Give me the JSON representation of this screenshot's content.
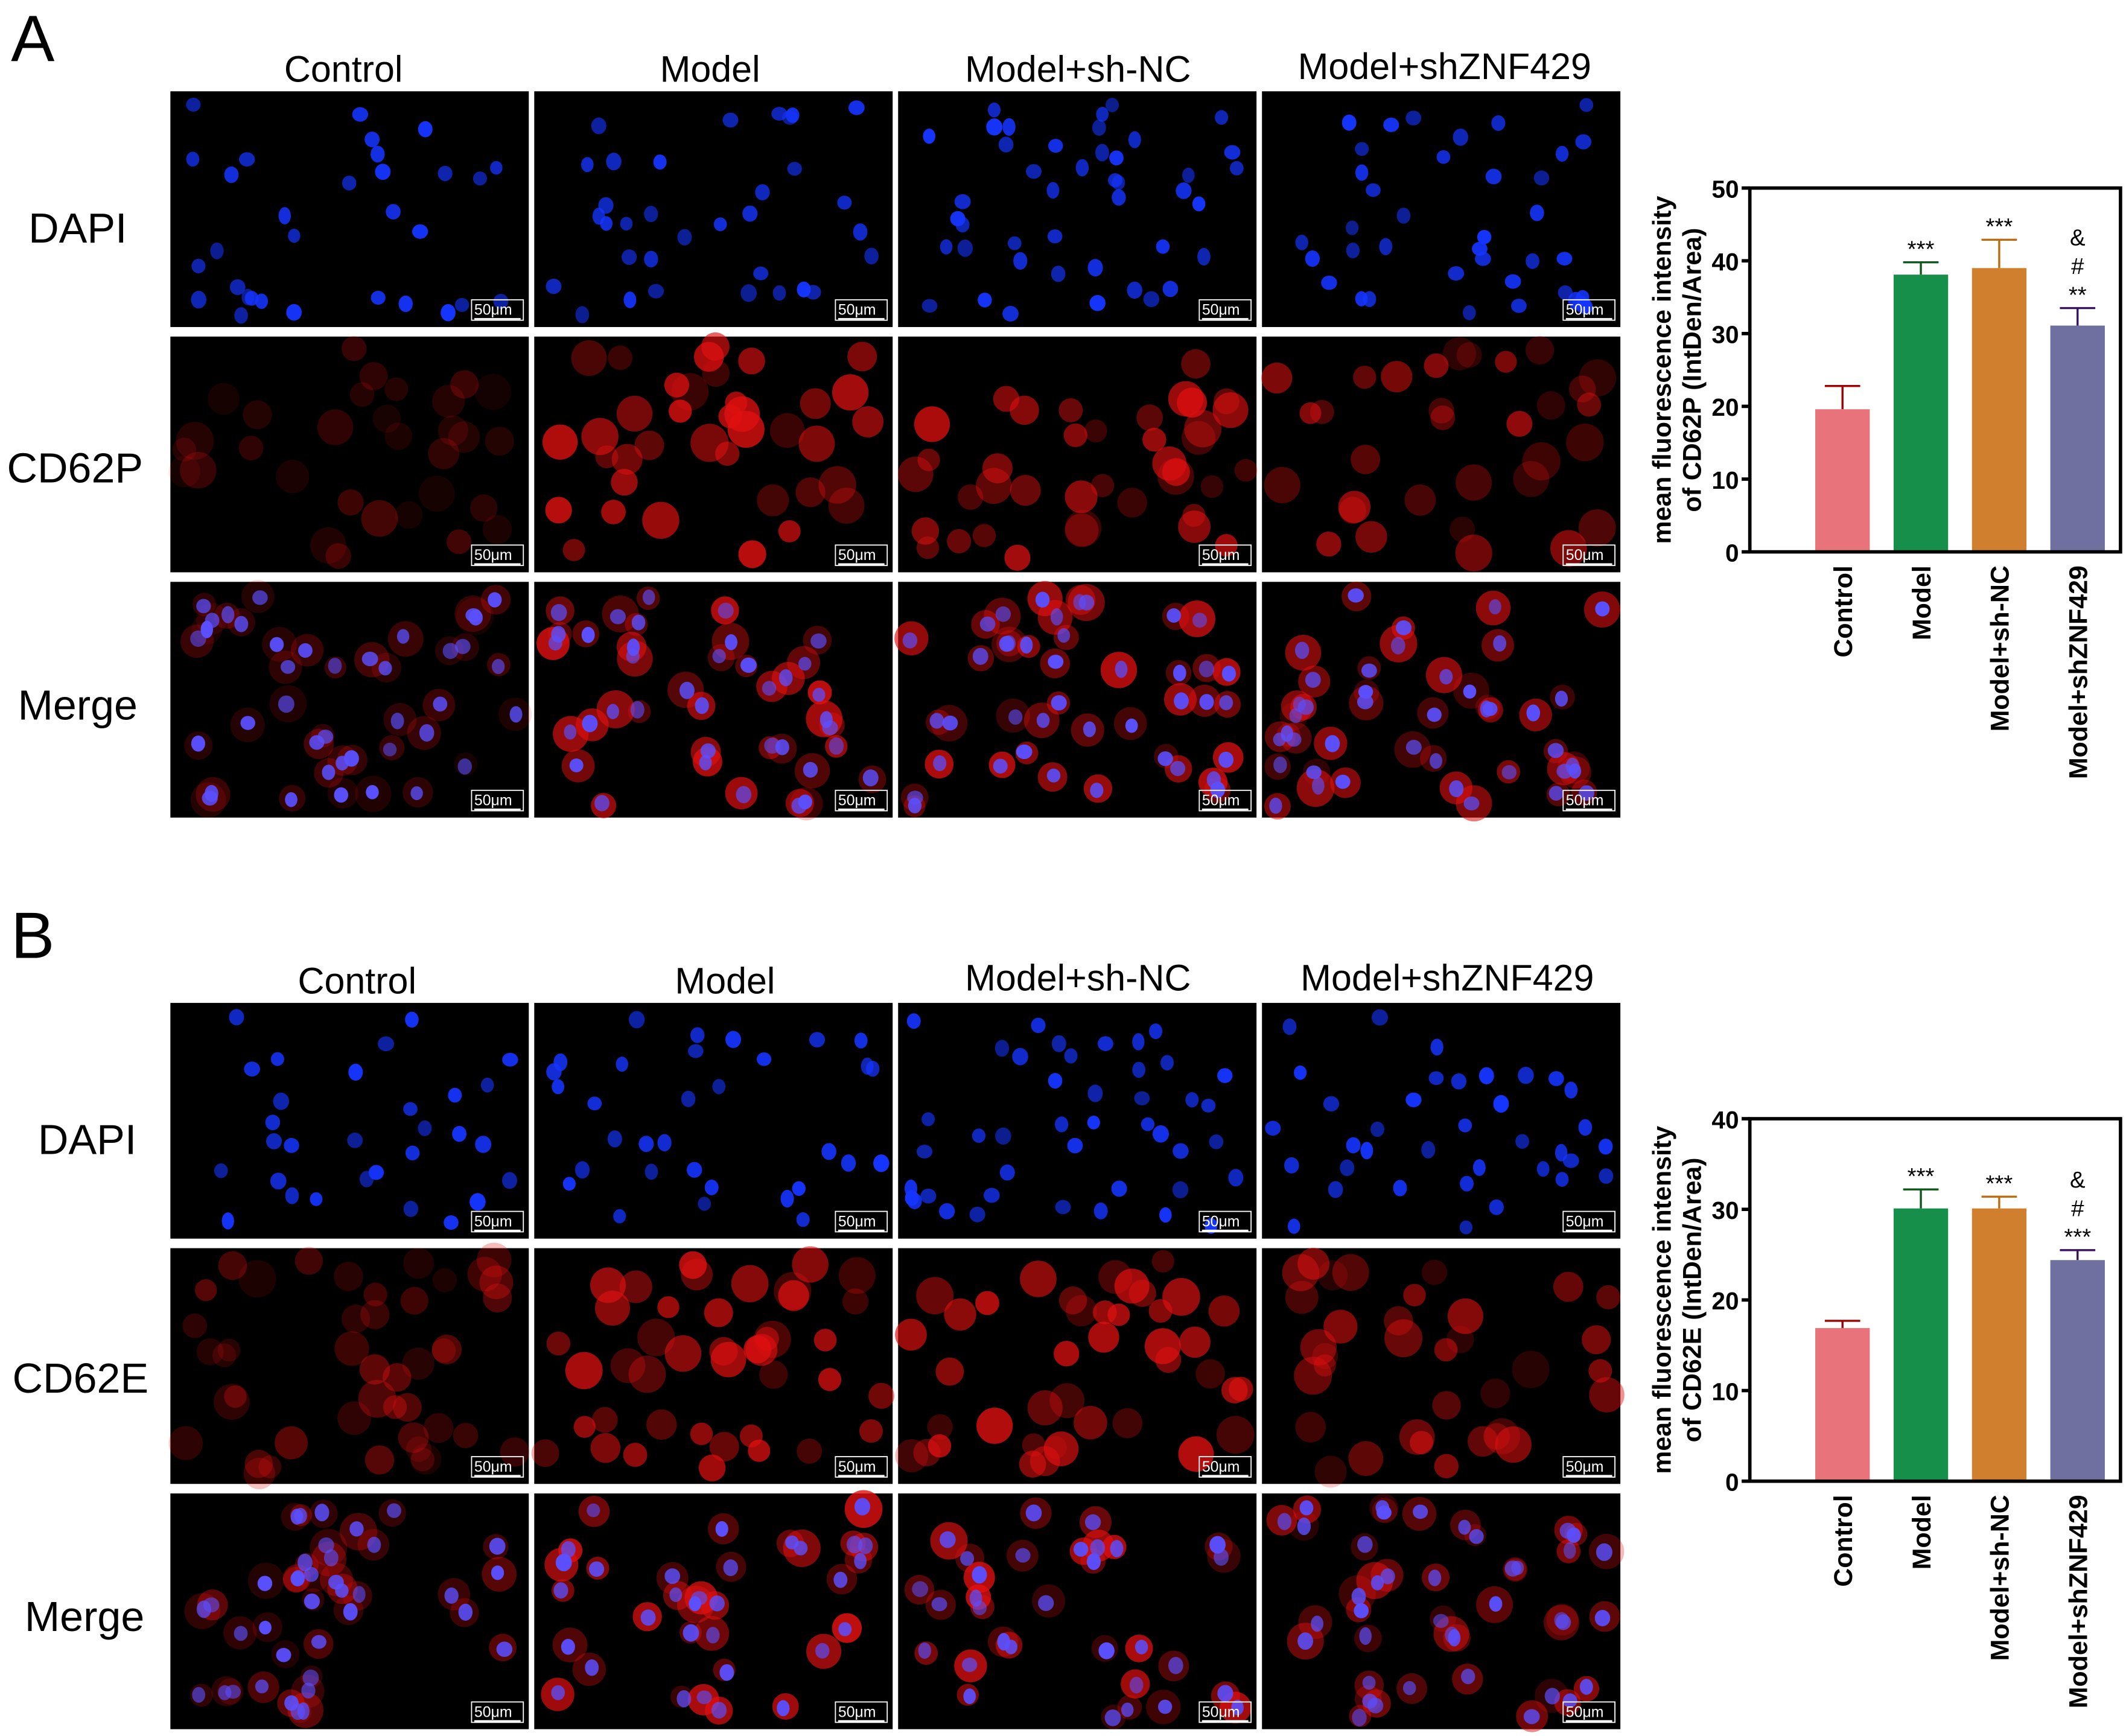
{
  "panels": [
    {
      "label": "A",
      "columns": [
        "Control",
        "Model",
        "Model+sh-NC",
        "Model+shZNF429"
      ],
      "rows": [
        "DAPI",
        "CD62P",
        "Merge"
      ],
      "scale_bar": "50μm"
    },
    {
      "label": "B",
      "columns": [
        "Control",
        "Model",
        "Model+sh-NC",
        "Model+shZNF429"
      ],
      "rows": [
        "DAPI",
        "CD62E",
        "Merge"
      ],
      "scale_bar": "50μm"
    }
  ],
  "chart_data": [
    {
      "type": "bar",
      "title": "",
      "ylabel_line1": "mean fluorescence intensity",
      "ylabel_line2": "of CD62P (IntDen/Area)",
      "categories": [
        "Control",
        "Model",
        "Model+sh-NC",
        "Model+shZNF429"
      ],
      "values": [
        19.6,
        38.1,
        39.0,
        31.1
      ],
      "errors": [
        3.2,
        1.7,
        3.9,
        2.4
      ],
      "significance": [
        [],
        [
          "***"
        ],
        [
          "***"
        ],
        [
          "&",
          "#",
          "**"
        ]
      ],
      "ylim": [
        0,
        50
      ],
      "yticks": [
        0,
        10,
        20,
        30,
        40,
        50
      ],
      "colors": [
        "#e8737a",
        "#158f4a",
        "#d07f2e",
        "#7070a0"
      ],
      "error_colors": [
        "#a00000",
        "#0a5a1a",
        "#c06a10",
        "#3a1060"
      ]
    },
    {
      "type": "bar",
      "title": "",
      "ylabel_line1": "mean fluorescence intensity",
      "ylabel_line2": "of CD62E (IntDen/Area)",
      "categories": [
        "Control",
        "Model",
        "Model+sh-NC",
        "Model+shZNF429"
      ],
      "values": [
        16.9,
        30.1,
        30.1,
        24.4
      ],
      "errors": [
        0.8,
        2.1,
        1.3,
        1.1
      ],
      "significance": [
        [],
        [
          "***"
        ],
        [
          "***"
        ],
        [
          "&",
          "#",
          "***"
        ]
      ],
      "ylim": [
        0,
        40
      ],
      "yticks": [
        0,
        10,
        20,
        30,
        40
      ],
      "colors": [
        "#e8737a",
        "#158f4a",
        "#d07f2e",
        "#7070a0"
      ],
      "error_colors": [
        "#a00000",
        "#0a5a1a",
        "#c06a10",
        "#3a1060"
      ]
    }
  ]
}
